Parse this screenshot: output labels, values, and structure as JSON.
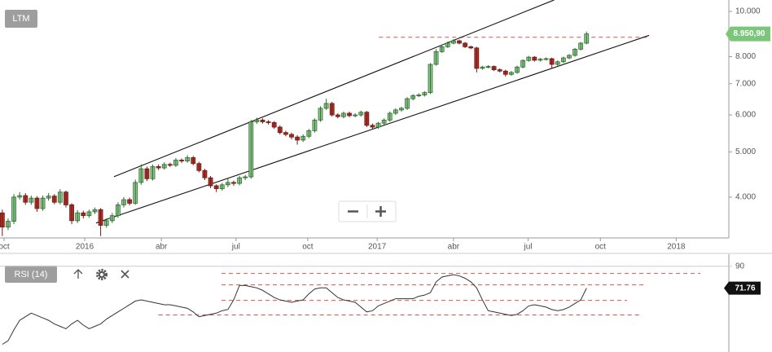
{
  "chart_data": [
    {
      "type": "candlestick",
      "title": "LTM",
      "log_scale": true,
      "open": [
        3700,
        3450,
        3550,
        4000,
        4030,
        3900,
        3980,
        3780,
        3980,
        4020,
        3900,
        4100,
        3850,
        3560,
        3700,
        3650,
        3720,
        3760,
        3480,
        3560,
        3650,
        3850,
        3950,
        3880,
        4300,
        4600,
        4380,
        4650,
        4620,
        4700,
        4680,
        4800,
        4780,
        4860,
        4720,
        4560,
        4400,
        4230,
        4170,
        4250,
        4300,
        4280,
        4400,
        4420,
        5800,
        5850,
        5800,
        5780,
        5650,
        5500,
        5450,
        5380,
        5300,
        5400,
        5550,
        5850,
        6200,
        6350,
        6000,
        5950,
        6050,
        5980,
        6000,
        6080,
        5700,
        5650,
        5760,
        5850,
        6050,
        6150,
        6200,
        6500,
        6600,
        6620,
        6700,
        7700,
        8200,
        8400,
        8550,
        8650,
        8550,
        8400,
        8350,
        7550,
        7600,
        7620,
        7500,
        7450,
        7330,
        7400,
        7600,
        7850,
        7980,
        7860,
        7900,
        7920,
        7700,
        7800,
        7950,
        8050,
        8300,
        8550
      ],
      "high": [
        3760,
        3600,
        4060,
        4100,
        4080,
        4030,
        4020,
        4030,
        4080,
        4060,
        4160,
        4130,
        3880,
        3750,
        3740,
        3760,
        3800,
        3790,
        3600,
        3700,
        3900,
        4000,
        3990,
        4360,
        4700,
        4650,
        4700,
        4700,
        4750,
        4740,
        4850,
        4840,
        4920,
        4900,
        4760,
        4600,
        4440,
        4260,
        4290,
        4400,
        4340,
        4440,
        4460,
        5850,
        5920,
        5900,
        5850,
        5820,
        5700,
        5550,
        5500,
        5430,
        5450,
        5600,
        5900,
        6260,
        6500,
        6400,
        6050,
        6100,
        6100,
        6050,
        6130,
        6120,
        5750,
        5800,
        5900,
        6100,
        6200,
        6250,
        6550,
        6650,
        6680,
        6750,
        7750,
        8300,
        8480,
        8620,
        8720,
        8700,
        8600,
        8450,
        8400,
        7650,
        7670,
        7660,
        7550,
        7500,
        7450,
        7650,
        7900,
        8030,
        8020,
        7950,
        7970,
        7960,
        7850,
        8000,
        8100,
        8350,
        8600,
        9050
      ],
      "low": [
        3300,
        3400,
        3500,
        3950,
        3850,
        3850,
        3720,
        3740,
        3930,
        3860,
        3860,
        3800,
        3500,
        3520,
        3600,
        3610,
        3680,
        3300,
        3440,
        3520,
        3610,
        3800,
        3840,
        3850,
        4250,
        4330,
        4340,
        4570,
        4580,
        4640,
        4640,
        4730,
        4740,
        4680,
        4520,
        4350,
        4180,
        4100,
        4130,
        4200,
        4230,
        4240,
        4350,
        4380,
        5740,
        5750,
        5720,
        5600,
        5450,
        5400,
        5320,
        5180,
        5250,
        5350,
        5500,
        5800,
        6150,
        5950,
        5900,
        5900,
        5930,
        5930,
        5950,
        5650,
        5600,
        5600,
        5710,
        5800,
        6000,
        6100,
        6150,
        6450,
        6550,
        6570,
        6650,
        7650,
        8150,
        8350,
        8500,
        8500,
        8350,
        8300,
        7400,
        7500,
        7550,
        7450,
        7400,
        7250,
        7280,
        7350,
        7550,
        7800,
        7810,
        7810,
        7850,
        7550,
        7650,
        7750,
        7900,
        8000,
        8250,
        8500
      ],
      "close": [
        3450,
        3550,
        4000,
        4030,
        3900,
        3980,
        3780,
        3980,
        4020,
        3900,
        4100,
        3850,
        3560,
        3700,
        3650,
        3720,
        3760,
        3480,
        3560,
        3650,
        3850,
        3950,
        3880,
        4300,
        4600,
        4380,
        4650,
        4620,
        4700,
        4680,
        4800,
        4780,
        4860,
        4720,
        4560,
        4400,
        4230,
        4170,
        4250,
        4300,
        4280,
        4400,
        4420,
        5800,
        5850,
        5800,
        5780,
        5650,
        5500,
        5450,
        5380,
        5300,
        5400,
        5550,
        5850,
        6200,
        6350,
        6000,
        5950,
        6050,
        5980,
        6000,
        6080,
        5700,
        5650,
        5760,
        5850,
        6050,
        6150,
        6200,
        6500,
        6600,
        6620,
        6700,
        7700,
        8200,
        8400,
        8550,
        8650,
        8550,
        8400,
        8350,
        7550,
        7600,
        7620,
        7500,
        7450,
        7330,
        7400,
        7600,
        7850,
        7980,
        7860,
        7900,
        7920,
        7700,
        7800,
        7950,
        8050,
        8300,
        8550,
        8950.9
      ],
      "up_color": "#8fc98f",
      "down_color": "#b0302a",
      "last_price_label": "8.950,90",
      "last_price_color": "#7bc67b",
      "xlim": [
        -0.4,
        125.6
      ],
      "xticks": [
        {
          "value": 0.3,
          "label": "oct"
        },
        {
          "value": 14.25,
          "label": "2016"
        },
        {
          "value": 27.5,
          "label": "abr"
        },
        {
          "value": 40.4,
          "label": "jul"
        },
        {
          "value": 52.8,
          "label": "oct"
        },
        {
          "value": 64.8,
          "label": "2017"
        },
        {
          "value": 78.0,
          "label": "abr"
        },
        {
          "value": 90.9,
          "label": "jul"
        },
        {
          "value": 103.4,
          "label": "oct"
        },
        {
          "value": 116.5,
          "label": "2018"
        }
      ],
      "ylim": [
        3270,
        10580
      ],
      "yticks": [
        {
          "value": 4000,
          "label": "4.000"
        },
        {
          "value": 5000,
          "label": "5.000"
        },
        {
          "value": 6000,
          "label": "6.000"
        },
        {
          "value": 7000,
          "label": "7.000"
        },
        {
          "value": 8000,
          "label": "8.000"
        },
        {
          "value": 10000,
          "label": "10.000"
        }
      ],
      "trendlines": [
        {
          "x": [
            19.3,
            95.4
          ],
          "y": [
            4423,
            10583
          ]
        },
        {
          "x": [
            16.2,
            111.8
          ],
          "y": [
            3520,
            8884
          ]
        }
      ],
      "levels": [
        {
          "y": 8800,
          "x": [
            65.1,
            111.5
          ]
        }
      ]
    },
    {
      "type": "line",
      "title": "RSI (14)",
      "color": "#333333",
      "values": [
        25,
        28,
        37,
        45,
        48,
        51,
        49,
        47,
        45,
        42,
        40,
        38,
        42,
        45,
        41,
        38,
        40,
        42,
        46,
        49,
        52,
        55,
        58,
        61,
        62,
        61,
        60,
        59,
        58,
        58,
        57,
        56,
        55,
        52,
        48,
        49,
        50,
        51,
        53,
        54,
        62,
        74,
        74,
        73,
        72,
        70,
        67,
        64,
        62,
        61,
        60,
        61,
        62,
        67,
        71,
        72,
        72,
        68,
        64,
        62,
        61,
        60,
        56,
        52,
        53,
        57,
        59,
        61,
        63,
        63,
        63,
        63,
        65,
        66,
        68,
        77,
        81,
        82,
        83,
        82,
        80,
        77,
        72,
        62,
        53,
        52,
        51,
        50,
        49,
        50,
        53,
        57,
        58,
        57,
        56,
        54,
        53,
        54,
        56,
        59,
        62,
        71.76
      ],
      "xlim": [
        -0.4,
        125.6
      ],
      "ylim": [
        20,
        100
      ],
      "yticks": [
        90
      ],
      "levels": [
        {
          "y": 84,
          "x": [
            37.9,
            120.7
          ]
        },
        {
          "y": 74.5,
          "x": [
            37.9,
            110.9
          ]
        },
        {
          "y": 61.6,
          "x": [
            37.9,
            108.0
          ]
        },
        {
          "y": 49.5,
          "x": [
            27.0,
            110.1
          ]
        }
      ]
    }
  ]
}
